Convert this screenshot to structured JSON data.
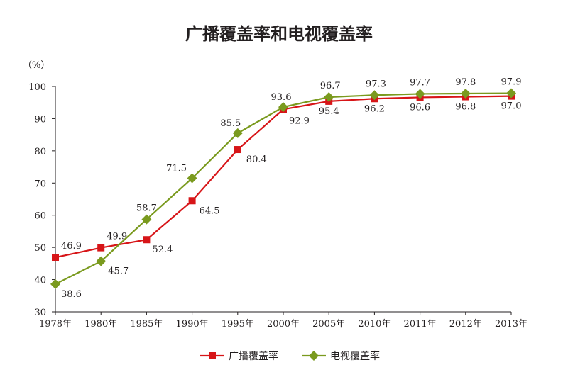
{
  "colors": {
    "broadcast": "#d71518",
    "tv": "#7a9a1e",
    "axis": "#231f20"
  },
  "chart_data": {
    "type": "line",
    "title": "广播覆盖率和电视覆盖率",
    "unit_label": "（%）",
    "xlabel": "",
    "ylabel": "",
    "categories": [
      "1978年",
      "1980年",
      "1985年",
      "1990年",
      "1995年",
      "2000年",
      "2005年",
      "2010年",
      "2011年",
      "2012年",
      "2013年"
    ],
    "ylim": [
      30,
      100
    ],
    "yticks": [
      30,
      40,
      50,
      60,
      70,
      80,
      90,
      100
    ],
    "grid": false,
    "legend_position": "bottom",
    "series": [
      {
        "name": "广播覆盖率",
        "marker": "square",
        "color": "#d71518",
        "values": [
          46.9,
          49.9,
          52.4,
          64.5,
          80.4,
          92.9,
          95.4,
          96.2,
          96.6,
          96.8,
          97.0
        ],
        "labels": [
          "46.9",
          "49.9",
          "52.4",
          "64.5",
          "80.4",
          "92.9",
          "95.4",
          "96.2",
          "96.6",
          "96.8",
          "97.0"
        ]
      },
      {
        "name": "电视覆盖率",
        "marker": "diamond",
        "color": "#7a9a1e",
        "values": [
          38.6,
          45.7,
          58.7,
          71.5,
          85.5,
          93.6,
          96.7,
          97.3,
          97.7,
          97.8,
          97.9
        ],
        "labels": [
          "38.6",
          "45.7",
          "58.7",
          "71.5",
          "85.5",
          "93.6",
          "96.7",
          "97.3",
          "97.7",
          "97.8",
          "97.9"
        ]
      }
    ]
  }
}
